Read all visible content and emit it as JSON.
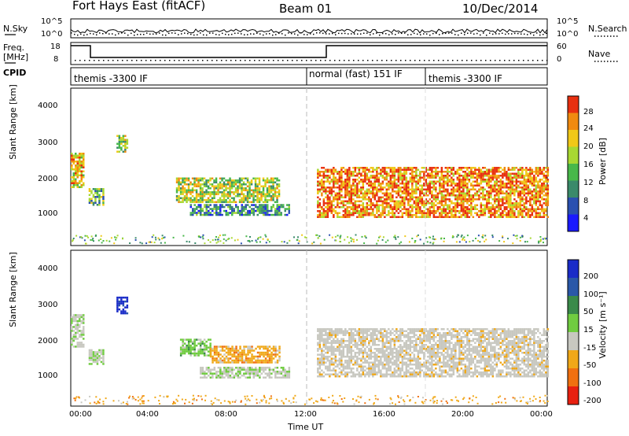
{
  "header": {
    "title": "Fort Hays East (fitACF)",
    "beam": "Beam 01",
    "date": "10/Dec/2014"
  },
  "top_panels": {
    "nsky_label": "N.Sky",
    "nsky_ticks": [
      "10^5",
      "10^0"
    ],
    "nsearch_label": "N.Search",
    "nsearch_ticks": [
      "10^5",
      "10^0"
    ],
    "freq_label": "Freq.",
    "freq_unit": "[MHz]",
    "freq_ticks": [
      "18",
      "8"
    ],
    "nave_label": "Nave",
    "nave_ticks": [
      "60",
      "0"
    ],
    "cpid_label": "CPID",
    "cpid_segments": [
      {
        "label": "themis -3300 IF",
        "start_hour": 0
      },
      {
        "label": "normal (fast) 151 IF",
        "start_hour": 12
      },
      {
        "label": "themis -3300 IF",
        "start_hour": 18
      }
    ]
  },
  "axes": {
    "ylabel": "Slant Range [km]",
    "xlabel": "Time UT",
    "y_ticks": [
      "1000",
      "2000",
      "3000",
      "4000"
    ],
    "x_ticks": [
      "00:00",
      "04:00",
      "08:00",
      "12:00",
      "16:00",
      "20:00",
      "00:00"
    ]
  },
  "power_colorbar": {
    "label": "Power [dB]",
    "ticks": [
      "4",
      "8",
      "12",
      "16",
      "20",
      "24",
      "28"
    ],
    "colors": [
      "#1a1aff",
      "#2a50b0",
      "#3a8a6a",
      "#48b84a",
      "#a8d832",
      "#f0c818",
      "#f08a10",
      "#e83010"
    ]
  },
  "velocity_colorbar": {
    "label": "Velocity [m s⁻¹]",
    "ticks": [
      "200",
      "100",
      "50",
      "15",
      "-15",
      "-50",
      "-100",
      "-200"
    ],
    "colors": [
      "#1a2cc8",
      "#2a58a8",
      "#3a8a4a",
      "#70cc40",
      "#c8c8c0",
      "#f0a818",
      "#f07010",
      "#e82010"
    ]
  },
  "chart_data": {
    "type": "heatmap",
    "x_range_hours": [
      0,
      24
    ],
    "y_range_km": [
      200,
      4600
    ],
    "power_panel": {
      "regions": [
        {
          "t0": 0.0,
          "t1": 0.6,
          "r0": 1800,
          "r1": 2800,
          "level": 5
        },
        {
          "t0": 0.9,
          "t1": 1.6,
          "r0": 1300,
          "r1": 1800,
          "level": 3
        },
        {
          "t0": 2.3,
          "t1": 2.8,
          "r0": 2850,
          "r1": 3300,
          "level": 4
        },
        {
          "t0": 5.3,
          "t1": 10.5,
          "r0": 1400,
          "r1": 2100,
          "level": 4
        },
        {
          "t0": 6.0,
          "t1": 11.0,
          "r0": 1050,
          "r1": 1350,
          "level": 2
        },
        {
          "t0": 12.4,
          "t1": 24.0,
          "r0": 1000,
          "r1": 2400,
          "level": 6
        }
      ]
    },
    "velocity_panel": {
      "regions": [
        {
          "t0": 0.0,
          "t1": 0.6,
          "r0": 1900,
          "r1": 2800,
          "level": 15
        },
        {
          "t0": 0.9,
          "t1": 1.6,
          "r0": 1400,
          "r1": 1800,
          "level": 15
        },
        {
          "t0": 2.3,
          "t1": 2.8,
          "r0": 2850,
          "r1": 3300,
          "level": 200
        },
        {
          "t0": 5.5,
          "t1": 7.0,
          "r0": 1600,
          "r1": 2100,
          "level": 50
        },
        {
          "t0": 7.0,
          "t1": 10.5,
          "r0": 1400,
          "r1": 1900,
          "level": -50
        },
        {
          "t0": 6.5,
          "t1": 11.0,
          "r0": 1000,
          "r1": 1300,
          "level": 15
        },
        {
          "t0": 12.4,
          "t1": 24.0,
          "r0": 1000,
          "r1": 2400,
          "level": -15
        }
      ]
    }
  }
}
